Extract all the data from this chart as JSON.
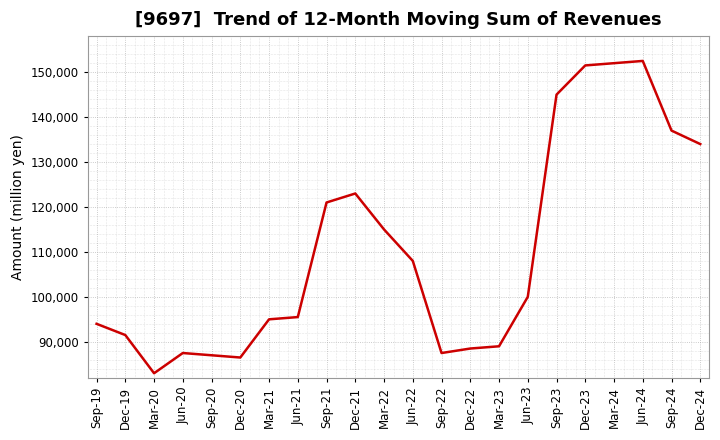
{
  "title": "[9697]  Trend of 12-Month Moving Sum of Revenues",
  "ylabel": "Amount (million yen)",
  "line_color": "#CC0000",
  "line_width": 1.8,
  "background_color": "#FFFFFF",
  "plot_background_color": "#FFFFFF",
  "grid_color": "#AAAAAA",
  "x_labels": [
    "Sep-19",
    "Dec-19",
    "Mar-20",
    "Jun-20",
    "Sep-20",
    "Dec-20",
    "Mar-21",
    "Jun-21",
    "Sep-21",
    "Dec-21",
    "Mar-22",
    "Jun-22",
    "Sep-22",
    "Dec-22",
    "Mar-23",
    "Jun-23",
    "Sep-23",
    "Dec-23",
    "Mar-24",
    "Jun-24",
    "Sep-24",
    "Dec-24"
  ],
  "values": [
    94000,
    91500,
    83000,
    87500,
    87000,
    86500,
    95000,
    95500,
    121000,
    123000,
    115000,
    108000,
    87500,
    88500,
    89000,
    100000,
    145000,
    151500,
    152000,
    152500,
    137000,
    134000
  ],
  "ylim": [
    82000,
    158000
  ],
  "yticks": [
    90000,
    100000,
    110000,
    120000,
    130000,
    140000,
    150000
  ],
  "title_fontsize": 13,
  "tick_fontsize": 8.5,
  "ylabel_fontsize": 10
}
